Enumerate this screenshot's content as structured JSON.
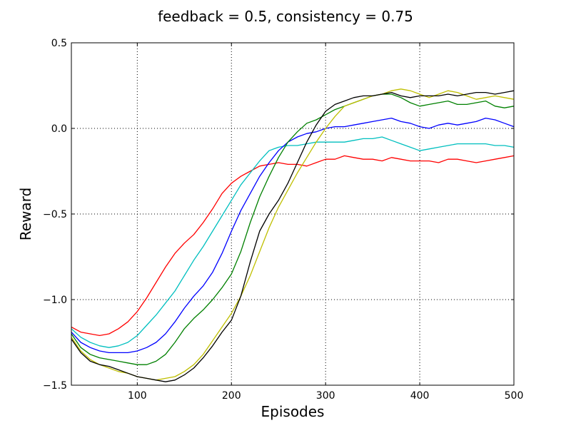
{
  "chart_data": {
    "type": "line",
    "title": "feedback = 0.5, consistency = 0.75",
    "xlabel": "Episodes",
    "ylabel": "Reward",
    "xlim": [
      30,
      500
    ],
    "ylim": [
      -1.5,
      0.5
    ],
    "x_ticks": [
      100,
      200,
      300,
      400,
      500
    ],
    "x_tick_labels": [
      "100",
      "200",
      "300",
      "400",
      "500"
    ],
    "y_ticks": [
      -1.5,
      -1.0,
      -0.5,
      0.0,
      0.5
    ],
    "y_tick_labels": [
      "−1.5",
      "−1.0",
      "−0.5",
      "0.0",
      "0.5"
    ],
    "grid": true,
    "x": [
      30,
      40,
      50,
      60,
      70,
      80,
      90,
      100,
      110,
      120,
      130,
      140,
      150,
      160,
      170,
      180,
      190,
      200,
      210,
      220,
      230,
      240,
      250,
      260,
      270,
      280,
      290,
      300,
      310,
      320,
      330,
      340,
      350,
      360,
      370,
      380,
      390,
      400,
      410,
      420,
      430,
      440,
      450,
      460,
      470,
      480,
      490,
      500
    ],
    "series": [
      {
        "name": "red",
        "color": "#ff0000",
        "values": [
          -1.16,
          -1.19,
          -1.2,
          -1.21,
          -1.2,
          -1.17,
          -1.13,
          -1.07,
          -0.99,
          -0.9,
          -0.81,
          -0.73,
          -0.67,
          -0.62,
          -0.55,
          -0.47,
          -0.38,
          -0.32,
          -0.28,
          -0.25,
          -0.22,
          -0.21,
          -0.2,
          -0.21,
          -0.21,
          -0.22,
          -0.2,
          -0.18,
          -0.18,
          -0.16,
          -0.17,
          -0.18,
          -0.18,
          -0.19,
          -0.17,
          -0.18,
          -0.19,
          -0.19,
          -0.19,
          -0.2,
          -0.18,
          -0.18,
          -0.19,
          -0.2,
          -0.19,
          -0.18,
          -0.17,
          -0.16
        ]
      },
      {
        "name": "cyan",
        "color": "#00bfbf",
        "values": [
          -1.17,
          -1.22,
          -1.25,
          -1.27,
          -1.28,
          -1.27,
          -1.25,
          -1.21,
          -1.15,
          -1.09,
          -1.02,
          -0.95,
          -0.86,
          -0.77,
          -0.69,
          -0.6,
          -0.51,
          -0.42,
          -0.33,
          -0.26,
          -0.19,
          -0.13,
          -0.11,
          -0.1,
          -0.1,
          -0.09,
          -0.08,
          -0.08,
          -0.08,
          -0.08,
          -0.07,
          -0.06,
          -0.06,
          -0.05,
          -0.07,
          -0.09,
          -0.11,
          -0.13,
          -0.12,
          -0.11,
          -0.1,
          -0.09,
          -0.09,
          -0.09,
          -0.09,
          -0.1,
          -0.1,
          -0.11
        ]
      },
      {
        "name": "blue",
        "color": "#0000ff",
        "values": [
          -1.19,
          -1.25,
          -1.28,
          -1.3,
          -1.31,
          -1.31,
          -1.31,
          -1.3,
          -1.28,
          -1.25,
          -1.2,
          -1.13,
          -1.05,
          -0.98,
          -0.92,
          -0.84,
          -0.73,
          -0.6,
          -0.48,
          -0.38,
          -0.28,
          -0.2,
          -0.13,
          -0.08,
          -0.05,
          -0.03,
          -0.02,
          0.0,
          0.01,
          0.01,
          0.02,
          0.03,
          0.04,
          0.05,
          0.06,
          0.04,
          0.03,
          0.01,
          0.0,
          0.02,
          0.03,
          0.02,
          0.03,
          0.04,
          0.06,
          0.05,
          0.03,
          0.01
        ]
      },
      {
        "name": "green",
        "color": "#008000",
        "values": [
          -1.2,
          -1.28,
          -1.32,
          -1.34,
          -1.35,
          -1.36,
          -1.37,
          -1.38,
          -1.38,
          -1.36,
          -1.32,
          -1.25,
          -1.17,
          -1.11,
          -1.06,
          -1.0,
          -0.93,
          -0.85,
          -0.72,
          -0.55,
          -0.4,
          -0.28,
          -0.17,
          -0.08,
          -0.02,
          0.03,
          0.05,
          0.08,
          0.11,
          0.13,
          0.15,
          0.17,
          0.19,
          0.2,
          0.2,
          0.18,
          0.15,
          0.13,
          0.14,
          0.15,
          0.16,
          0.14,
          0.14,
          0.15,
          0.16,
          0.13,
          0.12,
          0.13
        ]
      },
      {
        "name": "yellow",
        "color": "#bfbf00",
        "values": [
          -1.22,
          -1.3,
          -1.35,
          -1.38,
          -1.4,
          -1.42,
          -1.43,
          -1.45,
          -1.46,
          -1.47,
          -1.46,
          -1.45,
          -1.42,
          -1.38,
          -1.32,
          -1.24,
          -1.16,
          -1.08,
          -0.98,
          -0.86,
          -0.72,
          -0.58,
          -0.46,
          -0.36,
          -0.26,
          -0.17,
          -0.08,
          0.0,
          0.07,
          0.13,
          0.15,
          0.17,
          0.19,
          0.2,
          0.22,
          0.23,
          0.22,
          0.2,
          0.18,
          0.2,
          0.22,
          0.21,
          0.19,
          0.17,
          0.18,
          0.19,
          0.18,
          0.17
        ]
      },
      {
        "name": "black",
        "color": "#000000",
        "values": [
          -1.23,
          -1.31,
          -1.36,
          -1.38,
          -1.39,
          -1.41,
          -1.43,
          -1.45,
          -1.46,
          -1.47,
          -1.48,
          -1.47,
          -1.44,
          -1.4,
          -1.34,
          -1.27,
          -1.19,
          -1.12,
          -0.98,
          -0.78,
          -0.6,
          -0.5,
          -0.42,
          -0.32,
          -0.2,
          -0.08,
          0.02,
          0.1,
          0.14,
          0.16,
          0.18,
          0.19,
          0.19,
          0.2,
          0.21,
          0.19,
          0.18,
          0.19,
          0.19,
          0.19,
          0.2,
          0.19,
          0.2,
          0.21,
          0.21,
          0.2,
          0.21,
          0.22
        ]
      }
    ]
  }
}
